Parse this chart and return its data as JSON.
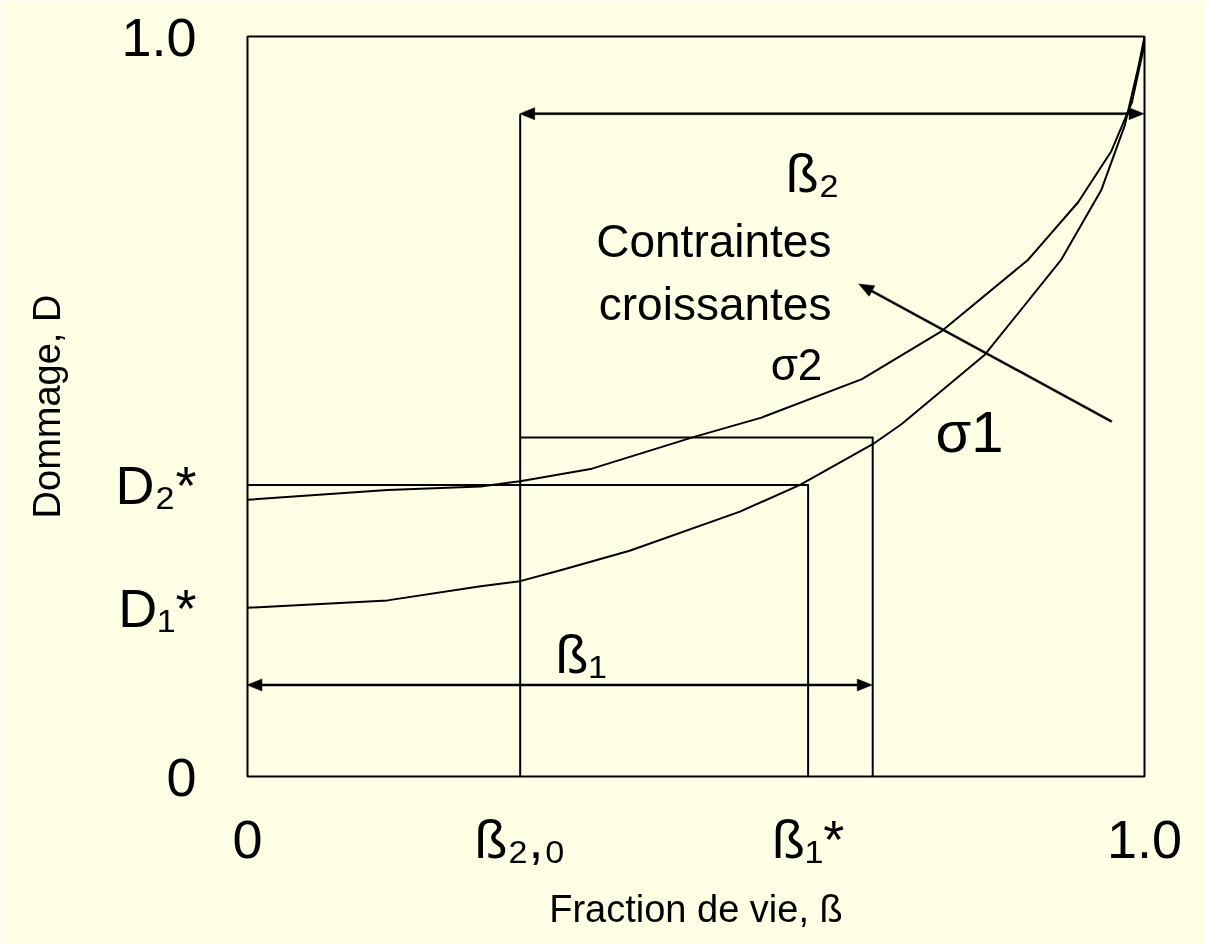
{
  "chart_data": {
    "type": "line",
    "xlabel": "Fraction de vie, ß",
    "ylabel": "Dommage, D",
    "xlim": [
      0,
      1
    ],
    "ylim": [
      0,
      1
    ],
    "xticks": [
      0,
      {
        "value": 0.304,
        "label": "ß₂,₀"
      },
      {
        "value": 0.625,
        "label": "ß₁*"
      },
      {
        "value": 1,
        "label": "1.0"
      }
    ],
    "yticks": [
      0,
      {
        "value": 0.228,
        "label": "D₁*"
      },
      {
        "value": 0.394,
        "label": "D₂*"
      },
      {
        "value": 1,
        "label": "1.0"
      }
    ],
    "series": [
      {
        "name": "σ1",
        "color": "#000000",
        "x": [
          0,
          0.156,
          0.26,
          0.304,
          0.35,
          0.426,
          0.549,
          0.616,
          0.697,
          0.729,
          0.822,
          0.907,
          0.952,
          0.978,
          0.993,
          1
        ],
        "values": [
          0.228,
          0.238,
          0.257,
          0.264,
          0.279,
          0.305,
          0.358,
          0.394,
          0.449,
          0.476,
          0.57,
          0.698,
          0.793,
          0.88,
          0.958,
          1
        ]
      },
      {
        "name": "σ2",
        "color": "#000000",
        "x": [
          0,
          0.156,
          0.26,
          0.304,
          0.384,
          0.498,
          0.573,
          0.685,
          0.774,
          0.87,
          0.926,
          0.963,
          0.986,
          0.999,
          1
        ],
        "values": [
          0.374,
          0.387,
          0.392,
          0.399,
          0.416,
          0.459,
          0.485,
          0.537,
          0.602,
          0.698,
          0.776,
          0.845,
          0.911,
          0.984,
          1
        ]
      },
      {
        "color": "#000000",
        "x": [
          0,
          0.625,
          0.625
        ],
        "values": [
          0.394,
          0.394,
          0
        ]
      },
      {
        "color": "#000000",
        "x": [
          0.304,
          0.304,
          0.304,
          0.697,
          0.697
        ],
        "values": [
          0.895,
          0,
          0.458,
          0.458,
          0
        ]
      }
    ],
    "annotations": [
      "ß₂",
      "Contraintes croissantes",
      "ß₁"
    ]
  }
}
